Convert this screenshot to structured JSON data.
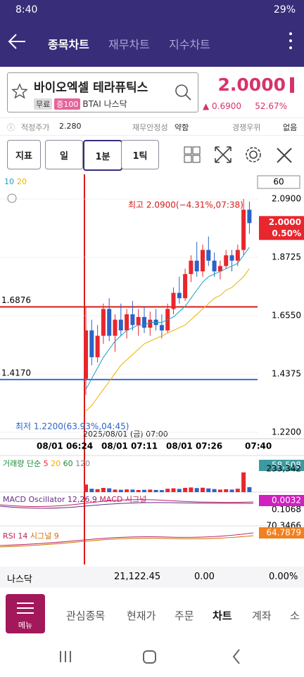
{
  "status": {
    "time": "8:40",
    "battery": "29%"
  },
  "header": {
    "tabs": [
      "종목차트",
      "재무차트",
      "지수차트"
    ]
  },
  "stock": {
    "name": "바이오엑셀 테라퓨틱스",
    "tags": [
      "무료",
      "증100"
    ],
    "ticker": "BTAI",
    "market": "나스닥",
    "price": "2.0000",
    "change": "▲ 0.6900",
    "change_pct": "52.67%"
  },
  "metrics": [
    {
      "label": "적정주가",
      "value": "2.280"
    },
    {
      "label": "재무안정성",
      "value": "약함"
    },
    {
      "label": "경쟁우위",
      "value": "없음"
    }
  ],
  "toolbar": {
    "indicator": "지표",
    "periods": [
      "일",
      "1분",
      "1틱"
    ],
    "count": "60"
  },
  "chart_data": {
    "type": "candlestick",
    "ma_legend": [
      "10",
      "20"
    ],
    "ylim": [
      1.22,
      2.09
    ],
    "yticks": [
      {
        "value": 2.09,
        "label": "2.0900"
      },
      {
        "value": 1.8725,
        "label": "1.8725"
      },
      {
        "value": 1.655,
        "label": "1.6550"
      },
      {
        "value": 1.4375,
        "label": "1.4375"
      },
      {
        "value": 1.22,
        "label": "1.2200"
      }
    ],
    "hlines": [
      {
        "value": 1.6876,
        "label": "1.6876",
        "color": "#d81b1b"
      },
      {
        "value": 1.417,
        "label": "1.4170",
        "color": "#3a6fd0"
      }
    ],
    "annotations": {
      "high": "최고 2.0900(−4.31%,07:38)",
      "low": "최저 1.2200(63.93%,04:45)",
      "date": "2025/08/01 (금) 07:00"
    },
    "current": {
      "value": 2.0,
      "label": "2.0000",
      "pct": "0.50%"
    },
    "xlabels": [
      "08/01 06:24",
      "08/01 07:11",
      "08/01 07:26",
      "07:40"
    ],
    "up_color": "#e8262d",
    "down_color": "#2b63c7",
    "candles": [
      {
        "open": 1.42,
        "high": 1.69,
        "low": 1.36,
        "close": 1.6
      },
      {
        "open": 1.6,
        "high": 1.64,
        "low": 1.47,
        "close": 1.5
      },
      {
        "open": 1.5,
        "high": 1.62,
        "low": 1.48,
        "close": 1.58
      },
      {
        "open": 1.58,
        "high": 1.7,
        "low": 1.55,
        "close": 1.68
      },
      {
        "open": 1.68,
        "high": 1.72,
        "low": 1.56,
        "close": 1.58
      },
      {
        "open": 1.58,
        "high": 1.66,
        "low": 1.52,
        "close": 1.64
      },
      {
        "open": 1.64,
        "high": 1.7,
        "low": 1.58,
        "close": 1.6
      },
      {
        "open": 1.6,
        "high": 1.68,
        "low": 1.57,
        "close": 1.66
      },
      {
        "open": 1.66,
        "high": 1.71,
        "low": 1.6,
        "close": 1.62
      },
      {
        "open": 1.62,
        "high": 1.68,
        "low": 1.58,
        "close": 1.65
      },
      {
        "open": 1.65,
        "high": 1.69,
        "low": 1.59,
        "close": 1.61
      },
      {
        "open": 1.61,
        "high": 1.67,
        "low": 1.58,
        "close": 1.64
      },
      {
        "open": 1.64,
        "high": 1.68,
        "low": 1.6,
        "close": 1.62
      },
      {
        "open": 1.62,
        "high": 1.66,
        "low": 1.57,
        "close": 1.6
      },
      {
        "open": 1.6,
        "high": 1.7,
        "low": 1.59,
        "close": 1.68
      },
      {
        "open": 1.68,
        "high": 1.76,
        "low": 1.66,
        "close": 1.74
      },
      {
        "open": 1.74,
        "high": 1.8,
        "low": 1.7,
        "close": 1.72
      },
      {
        "open": 1.72,
        "high": 1.83,
        "low": 1.71,
        "close": 1.81
      },
      {
        "open": 1.81,
        "high": 1.88,
        "low": 1.78,
        "close": 1.86
      },
      {
        "open": 1.86,
        "high": 1.93,
        "low": 1.8,
        "close": 1.82
      },
      {
        "open": 1.82,
        "high": 1.92,
        "low": 1.8,
        "close": 1.9
      },
      {
        "open": 1.9,
        "high": 1.95,
        "low": 1.84,
        "close": 1.86
      },
      {
        "open": 1.86,
        "high": 1.89,
        "low": 1.8,
        "close": 1.82
      },
      {
        "open": 1.82,
        "high": 1.86,
        "low": 1.79,
        "close": 1.84
      },
      {
        "open": 1.84,
        "high": 1.9,
        "low": 1.83,
        "close": 1.88
      },
      {
        "open": 1.88,
        "high": 1.9,
        "low": 1.82,
        "close": 1.86
      },
      {
        "open": 1.86,
        "high": 1.92,
        "low": 1.84,
        "close": 1.9
      },
      {
        "open": 1.9,
        "high": 2.09,
        "low": 1.88,
        "close": 2.05
      },
      {
        "open": 2.05,
        "high": 2.08,
        "low": 1.96,
        "close": 2.0
      }
    ],
    "series": [
      {
        "name": "10",
        "color": "#1aa0c0",
        "values": [
          1.38,
          1.42,
          1.46,
          1.5,
          1.53,
          1.56,
          1.58,
          1.6,
          1.61,
          1.62,
          1.62,
          1.63,
          1.63,
          1.63,
          1.64,
          1.65,
          1.67,
          1.69,
          1.72,
          1.75,
          1.78,
          1.8,
          1.81,
          1.82,
          1.83,
          1.84,
          1.85,
          1.88,
          1.91
        ]
      },
      {
        "name": "20",
        "color": "#f0b000",
        "values": [
          1.3,
          1.32,
          1.35,
          1.38,
          1.41,
          1.44,
          1.47,
          1.49,
          1.51,
          1.53,
          1.55,
          1.56,
          1.57,
          1.58,
          1.59,
          1.6,
          1.61,
          1.62,
          1.64,
          1.66,
          1.68,
          1.7,
          1.72,
          1.73,
          1.75,
          1.76,
          1.78,
          1.8,
          1.83
        ]
      }
    ],
    "volume": {
      "title": "거래량 단순",
      "ma": [
        "5",
        "20",
        "60",
        "120"
      ],
      "ylim": [
        0,
        233342
      ],
      "yticks": [
        {
          "value": 233342,
          "label": "233,342"
        }
      ],
      "current": "58,508",
      "values": [
        90000,
        40000,
        35000,
        50000,
        45000,
        30000,
        28000,
        32000,
        30000,
        25000,
        27000,
        30000,
        26000,
        24000,
        40000,
        45000,
        38000,
        50000,
        55000,
        48000,
        52000,
        44000,
        36000,
        30000,
        34000,
        30000,
        40000,
        233342,
        58508
      ]
    },
    "macd": {
      "title": "MACD Oscillator 12,26,9",
      "lines": "MACD 시그널",
      "tick": "0.1068",
      "current": "0.0032"
    },
    "rsi": {
      "title": "RSI 14",
      "lines": "시그널 9",
      "tick": "70.3466",
      "current": "64.7879"
    }
  },
  "ticker_bar": {
    "market": "나스닥",
    "index": "21,122.45",
    "change": "0.00",
    "pct": "0.00%"
  },
  "nav": {
    "menu": "메뉴",
    "items": [
      "관심종목",
      "현재가",
      "주문",
      "차트",
      "계좌",
      "소"
    ]
  }
}
